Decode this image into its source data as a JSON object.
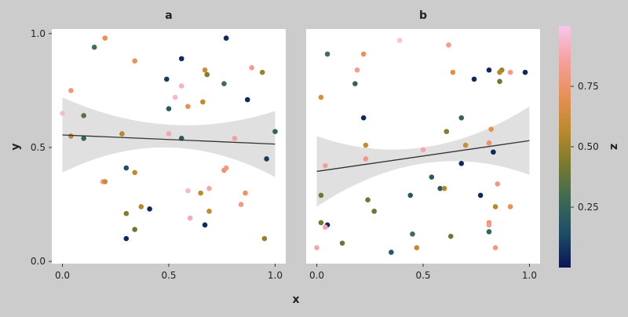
{
  "chart_data": {
    "type": "scatter",
    "xlabel": "x",
    "ylabel": "y",
    "xlim": [
      -0.05,
      1.05
    ],
    "ylim": [
      -0.01,
      1.02
    ],
    "xticks": [
      0.0,
      0.5,
      1.0
    ],
    "yticks": [
      0.0,
      0.5,
      1.0
    ],
    "xtick_labels": [
      "0.0",
      "0.5",
      "1.0"
    ],
    "ytick_labels": [
      "0.0",
      "0.5",
      "1.0"
    ],
    "grid": false,
    "colorbar": {
      "label": "z",
      "range": [
        0.0,
        1.0
      ],
      "ticks": [
        0.25,
        0.5,
        0.75
      ],
      "tick_labels": [
        "0.25",
        "0.50",
        "0.75"
      ],
      "colormap": [
        "#0a1552",
        "#1e4d66",
        "#3e6a54",
        "#7a7a2e",
        "#bd8a2e",
        "#e8905a",
        "#f5a0a0",
        "#f7c8ea"
      ]
    },
    "band_color": "#e0e0e0",
    "line_color": "#333333",
    "panel_background": "#ffffff",
    "panels": [
      {
        "title": "a",
        "fit": {
          "x": [
            0.0,
            1.0
          ],
          "y": [
            0.555,
            0.515
          ]
        },
        "band": {
          "x": [
            0.0,
            0.5,
            1.0
          ],
          "upper": [
            0.72,
            0.6,
            0.66
          ],
          "lower": [
            0.39,
            0.5,
            0.37
          ]
        },
        "points": [
          {
            "x": 0.2,
            "y": 0.98,
            "z": 0.72
          },
          {
            "x": 0.77,
            "y": 0.98,
            "z": 0.05
          },
          {
            "x": 0.15,
            "y": 0.94,
            "z": 0.3
          },
          {
            "x": 0.56,
            "y": 0.89,
            "z": 0.05
          },
          {
            "x": 0.34,
            "y": 0.88,
            "z": 0.72
          },
          {
            "x": 0.89,
            "y": 0.85,
            "z": 0.82
          },
          {
            "x": 0.67,
            "y": 0.84,
            "z": 0.62
          },
          {
            "x": 0.68,
            "y": 0.82,
            "z": 0.45
          },
          {
            "x": 0.94,
            "y": 0.83,
            "z": 0.5
          },
          {
            "x": 0.49,
            "y": 0.8,
            "z": 0.1
          },
          {
            "x": 0.76,
            "y": 0.78,
            "z": 0.3
          },
          {
            "x": 0.56,
            "y": 0.77,
            "z": 0.92
          },
          {
            "x": 0.04,
            "y": 0.75,
            "z": 0.78
          },
          {
            "x": 0.53,
            "y": 0.72,
            "z": 0.95
          },
          {
            "x": 0.87,
            "y": 0.71,
            "z": 0.05
          },
          {
            "x": 0.66,
            "y": 0.7,
            "z": 0.58
          },
          {
            "x": 0.59,
            "y": 0.68,
            "z": 0.72
          },
          {
            "x": 0.5,
            "y": 0.67,
            "z": 0.2
          },
          {
            "x": 0.0,
            "y": 0.65,
            "z": 0.95
          },
          {
            "x": 0.1,
            "y": 0.64,
            "z": 0.35
          },
          {
            "x": 1.0,
            "y": 0.57,
            "z": 0.25
          },
          {
            "x": 0.5,
            "y": 0.56,
            "z": 0.88
          },
          {
            "x": 0.28,
            "y": 0.56,
            "z": 0.55
          },
          {
            "x": 0.04,
            "y": 0.55,
            "z": 0.55
          },
          {
            "x": 0.1,
            "y": 0.54,
            "z": 0.25
          },
          {
            "x": 0.56,
            "y": 0.54,
            "z": 0.2
          },
          {
            "x": 0.81,
            "y": 0.54,
            "z": 0.85
          },
          {
            "x": 0.96,
            "y": 0.45,
            "z": 0.1
          },
          {
            "x": 0.3,
            "y": 0.41,
            "z": 0.15
          },
          {
            "x": 0.76,
            "y": 0.4,
            "z": 0.75
          },
          {
            "x": 0.77,
            "y": 0.41,
            "z": 0.8
          },
          {
            "x": 0.34,
            "y": 0.39,
            "z": 0.58
          },
          {
            "x": 0.19,
            "y": 0.35,
            "z": 0.85
          },
          {
            "x": 0.2,
            "y": 0.35,
            "z": 0.6
          },
          {
            "x": 0.69,
            "y": 0.32,
            "z": 0.88
          },
          {
            "x": 0.59,
            "y": 0.31,
            "z": 0.95
          },
          {
            "x": 0.86,
            "y": 0.3,
            "z": 0.75
          },
          {
            "x": 0.65,
            "y": 0.3,
            "z": 0.58
          },
          {
            "x": 0.84,
            "y": 0.25,
            "z": 0.8
          },
          {
            "x": 0.37,
            "y": 0.24,
            "z": 0.55
          },
          {
            "x": 0.41,
            "y": 0.23,
            "z": 0.05
          },
          {
            "x": 0.69,
            "y": 0.22,
            "z": 0.6
          },
          {
            "x": 0.3,
            "y": 0.21,
            "z": 0.45
          },
          {
            "x": 0.6,
            "y": 0.19,
            "z": 0.9
          },
          {
            "x": 0.67,
            "y": 0.16,
            "z": 0.05
          },
          {
            "x": 0.34,
            "y": 0.14,
            "z": 0.4
          },
          {
            "x": 0.3,
            "y": 0.1,
            "z": 0.05
          },
          {
            "x": 0.95,
            "y": 0.1,
            "z": 0.48
          }
        ]
      },
      {
        "title": "b",
        "fit": {
          "x": [
            0.0,
            1.0
          ],
          "y": [
            0.395,
            0.53
          ]
        },
        "band": {
          "x": [
            0.0,
            0.5,
            1.0
          ],
          "upper": [
            0.55,
            0.5,
            0.68
          ],
          "lower": [
            0.24,
            0.43,
            0.38
          ]
        },
        "points": [
          {
            "x": 0.39,
            "y": 0.97,
            "z": 0.98
          },
          {
            "x": 0.62,
            "y": 0.95,
            "z": 0.82
          },
          {
            "x": 0.05,
            "y": 0.91,
            "z": 0.3
          },
          {
            "x": 0.22,
            "y": 0.91,
            "z": 0.72
          },
          {
            "x": 0.19,
            "y": 0.84,
            "z": 0.82
          },
          {
            "x": 0.64,
            "y": 0.83,
            "z": 0.68
          },
          {
            "x": 0.81,
            "y": 0.84,
            "z": 0.05
          },
          {
            "x": 0.87,
            "y": 0.84,
            "z": 0.5
          },
          {
            "x": 0.86,
            "y": 0.83,
            "z": 0.55
          },
          {
            "x": 0.91,
            "y": 0.83,
            "z": 0.82
          },
          {
            "x": 0.98,
            "y": 0.83,
            "z": 0.05
          },
          {
            "x": 0.74,
            "y": 0.8,
            "z": 0.05
          },
          {
            "x": 0.86,
            "y": 0.79,
            "z": 0.4
          },
          {
            "x": 0.18,
            "y": 0.78,
            "z": 0.25
          },
          {
            "x": 0.02,
            "y": 0.72,
            "z": 0.65
          },
          {
            "x": 0.22,
            "y": 0.63,
            "z": 0.05
          },
          {
            "x": 0.68,
            "y": 0.63,
            "z": 0.25
          },
          {
            "x": 0.61,
            "y": 0.57,
            "z": 0.45
          },
          {
            "x": 0.82,
            "y": 0.58,
            "z": 0.7
          },
          {
            "x": 0.81,
            "y": 0.52,
            "z": 0.75
          },
          {
            "x": 0.7,
            "y": 0.51,
            "z": 0.62
          },
          {
            "x": 0.23,
            "y": 0.51,
            "z": 0.6
          },
          {
            "x": 0.5,
            "y": 0.49,
            "z": 0.88
          },
          {
            "x": 0.83,
            "y": 0.48,
            "z": 0.05
          },
          {
            "x": 0.23,
            "y": 0.45,
            "z": 0.8
          },
          {
            "x": 0.68,
            "y": 0.43,
            "z": 0.05
          },
          {
            "x": 0.04,
            "y": 0.42,
            "z": 0.85
          },
          {
            "x": 0.54,
            "y": 0.37,
            "z": 0.2
          },
          {
            "x": 0.85,
            "y": 0.34,
            "z": 0.8
          },
          {
            "x": 0.58,
            "y": 0.32,
            "z": 0.2
          },
          {
            "x": 0.6,
            "y": 0.32,
            "z": 0.55
          },
          {
            "x": 0.44,
            "y": 0.29,
            "z": 0.2
          },
          {
            "x": 0.77,
            "y": 0.29,
            "z": 0.05
          },
          {
            "x": 0.02,
            "y": 0.29,
            "z": 0.4
          },
          {
            "x": 0.24,
            "y": 0.27,
            "z": 0.4
          },
          {
            "x": 0.84,
            "y": 0.24,
            "z": 0.55
          },
          {
            "x": 0.91,
            "y": 0.24,
            "z": 0.72
          },
          {
            "x": 0.27,
            "y": 0.22,
            "z": 0.4
          },
          {
            "x": 0.02,
            "y": 0.17,
            "z": 0.4
          },
          {
            "x": 0.81,
            "y": 0.17,
            "z": 0.75
          },
          {
            "x": 0.81,
            "y": 0.16,
            "z": 0.82
          },
          {
            "x": 0.05,
            "y": 0.16,
            "z": 0.05
          },
          {
            "x": 0.04,
            "y": 0.15,
            "z": 0.88
          },
          {
            "x": 0.81,
            "y": 0.13,
            "z": 0.25
          },
          {
            "x": 0.45,
            "y": 0.12,
            "z": 0.3
          },
          {
            "x": 0.63,
            "y": 0.11,
            "z": 0.4
          },
          {
            "x": 0.12,
            "y": 0.08,
            "z": 0.4
          },
          {
            "x": 0.0,
            "y": 0.06,
            "z": 0.88
          },
          {
            "x": 0.47,
            "y": 0.06,
            "z": 0.58
          },
          {
            "x": 0.84,
            "y": 0.06,
            "z": 0.8
          },
          {
            "x": 0.35,
            "y": 0.04,
            "z": 0.2
          }
        ]
      }
    ]
  }
}
